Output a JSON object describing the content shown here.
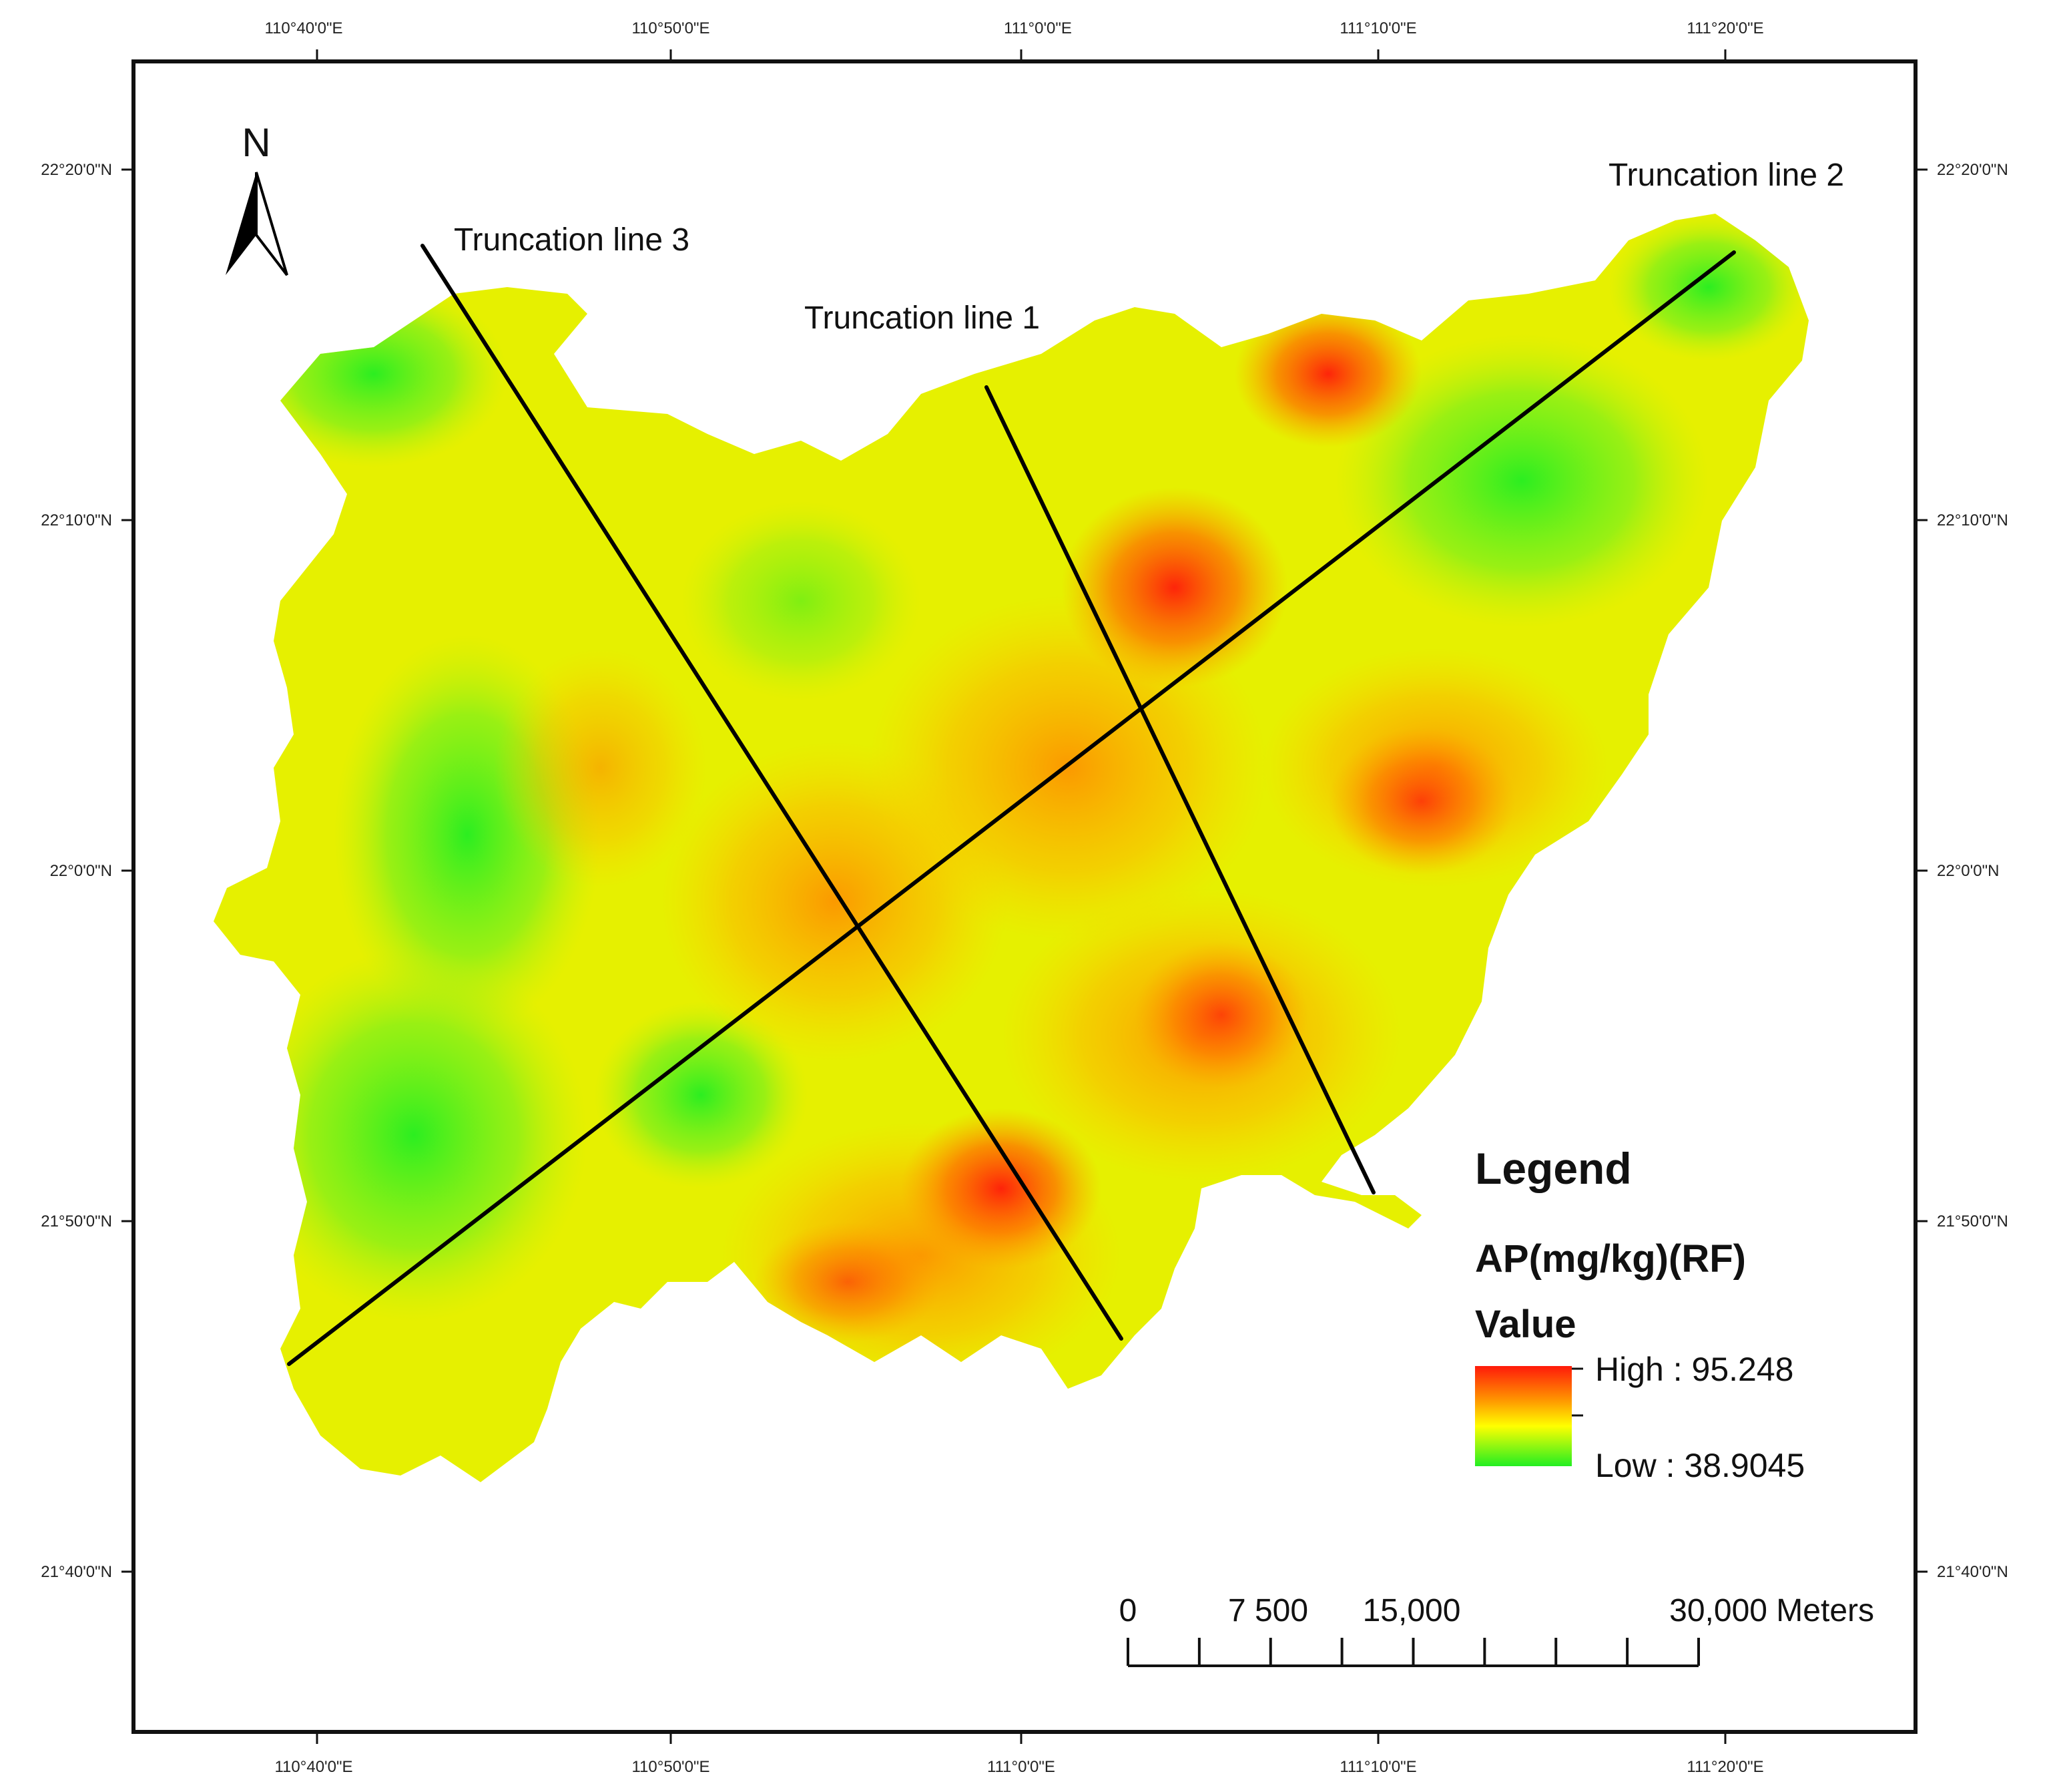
{
  "map": {
    "graticule": {
      "top_longitudes": [
        "110°40'0\"E",
        "110°50'0\"E",
        "111°0'0\"E",
        "111°10'0\"E",
        "111°20'0\"E"
      ],
      "bottom_longitudes": [
        "110°40'0\"E",
        "110°50'0\"E",
        "111°0'0\"E",
        "111°10'0\"E",
        "111°20'0\"E"
      ],
      "left_latitudes": [
        "22°20'0\"N",
        "22°10'0\"N",
        "22°0'0\"N",
        "21°50'0\"N",
        "21°40'0\"N"
      ],
      "right_latitudes": [
        "22°20'0\"N",
        "22°10'0\"N",
        "22°0'0\"N",
        "21°50'0\"N",
        "21°40'0\"N"
      ]
    },
    "north_arrow": {
      "label": "N"
    },
    "truncation_lines": [
      {
        "label": "Truncation line 1"
      },
      {
        "label": "Truncation line 2"
      },
      {
        "label": "Truncation line 3"
      }
    ],
    "legend": {
      "title": "Legend",
      "layer": "AP(mg/kg)(RF)",
      "field": "Value",
      "high_label": "High : 95.248",
      "low_label": "Low : 38.9045",
      "high_value": 95.248,
      "low_value": 38.9045,
      "ramp_colors": [
        "#ff1a0a",
        "#ff9a00",
        "#ffff00",
        "#22ee22"
      ]
    },
    "scale_bar": {
      "labels": [
        "0",
        "7 500",
        "15,000",
        "30,000 Meters"
      ]
    }
  }
}
